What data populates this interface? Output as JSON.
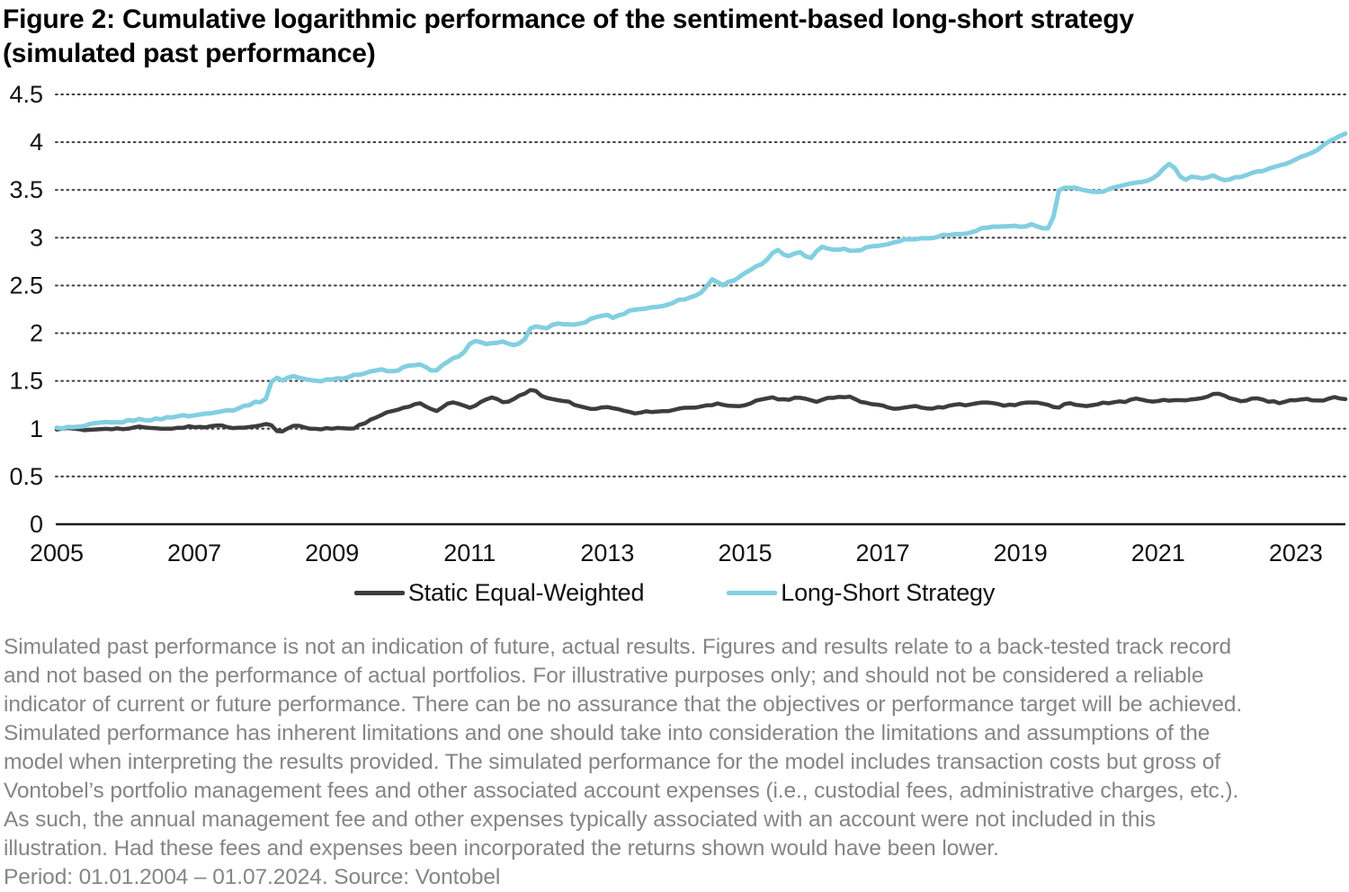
{
  "title": {
    "line1": "Figure 2: Cumulative logarithmic performance of the sentiment-based long-short strategy",
    "line2": "(simulated past performance)"
  },
  "legend": [
    {
      "label": "Static Equal-Weighted",
      "color": "#3d3d3d"
    },
    {
      "label": "Long-Short Strategy",
      "color": "#82cfe0"
    }
  ],
  "footnote": {
    "lines": [
      "Simulated past performance is not an indication of future, actual results. Figures and results relate to a back-tested track record",
      "and not based on the performance of actual portfolios. For illustrative purposes only; and should not be considered a reliable",
      "indicator of current or future performance. There can be no assurance that the objectives or performance target will be achieved.",
      "Simulated performance has inherent limitations and one should take into consideration the limitations and assumptions of the",
      "model when interpreting the results provided. The simulated performance for the model includes transaction costs but gross of",
      "Vontobel’s portfolio management fees and other associated account expenses (i.e., custodial fees, administrative charges, etc.).",
      "As such, the annual management fee and other expenses typically associated with an account were not included in this",
      "illustration. Had these fees and expenses been incorporated the returns shown would have been lower."
    ],
    "period_line": "Period: 01.01.2004 – 01.07.2024. Source: Vontobel"
  },
  "chart_data": {
    "type": "line",
    "title": "Figure 2: Cumulative logarithmic performance of the sentiment-based long-short strategy (simulated past performance)",
    "xlabel": "",
    "ylabel": "",
    "xlim": [
      2005,
      2023.7
    ],
    "ylim": [
      0,
      4.5
    ],
    "y_ticks": [
      0,
      0.5,
      1,
      1.5,
      2,
      2.5,
      3,
      3.5,
      4,
      4.5
    ],
    "x_tick_years": [
      2005,
      2007,
      2009,
      2011,
      2013,
      2015,
      2017,
      2019,
      2021,
      2023
    ],
    "grid": "horizontal-dotted",
    "baseline": "solid-at-0",
    "legend_position": "bottom-center",
    "axis_text_color": "#111111",
    "grid_color": "#3c3c3c",
    "series": [
      {
        "name": "Static Equal-Weighted",
        "color": "#3d3d3d",
        "stroke_width": 4.5,
        "noise": 0.018,
        "x": [
          2005.0,
          2005.4,
          2005.8,
          2006.2,
          2006.6,
          2007.0,
          2007.3,
          2007.6,
          2007.9,
          2008.1,
          2008.25,
          2008.45,
          2008.7,
          2009.0,
          2009.3,
          2009.55,
          2009.8,
          2010.0,
          2010.3,
          2010.5,
          2010.75,
          2011.0,
          2011.3,
          2011.5,
          2011.7,
          2011.9,
          2012.1,
          2012.3,
          2012.5,
          2012.8,
          2013.1,
          2013.4,
          2013.7,
          2014.0,
          2014.3,
          2014.6,
          2014.8,
          2015.0,
          2015.2,
          2015.4,
          2015.6,
          2015.8,
          2016.0,
          2016.2,
          2016.5,
          2016.7,
          2016.9,
          2017.2,
          2017.5,
          2017.8,
          2018.1,
          2018.4,
          2018.7,
          2019.0,
          2019.2,
          2019.45,
          2019.52,
          2019.6,
          2019.8,
          2020.0,
          2020.2,
          2020.5,
          2020.7,
          2020.9,
          2021.1,
          2021.3,
          2021.5,
          2021.7,
          2021.85,
          2022.0,
          2022.2,
          2022.4,
          2022.6,
          2022.8,
          2023.0,
          2023.2,
          2023.4,
          2023.55,
          2023.7
        ],
        "values": [
          1.0,
          0.99,
          1.0,
          1.01,
          1.0,
          1.02,
          1.03,
          1.01,
          1.03,
          1.05,
          0.96,
          1.03,
          1.0,
          1.0,
          1.01,
          1.08,
          1.17,
          1.21,
          1.26,
          1.19,
          1.28,
          1.22,
          1.32,
          1.28,
          1.33,
          1.41,
          1.33,
          1.3,
          1.26,
          1.21,
          1.22,
          1.16,
          1.18,
          1.2,
          1.23,
          1.26,
          1.24,
          1.25,
          1.3,
          1.33,
          1.3,
          1.32,
          1.29,
          1.32,
          1.34,
          1.28,
          1.24,
          1.22,
          1.23,
          1.22,
          1.25,
          1.27,
          1.25,
          1.26,
          1.27,
          1.26,
          1.18,
          1.26,
          1.25,
          1.24,
          1.26,
          1.29,
          1.31,
          1.29,
          1.3,
          1.29,
          1.31,
          1.33,
          1.37,
          1.33,
          1.29,
          1.31,
          1.29,
          1.28,
          1.3,
          1.31,
          1.3,
          1.32,
          1.31
        ]
      },
      {
        "name": "Long-Short Strategy",
        "color": "#82cfe0",
        "stroke_width": 5,
        "noise": 0.02,
        "x": [
          2005.0,
          2005.3,
          2005.6,
          2006.0,
          2006.4,
          2006.8,
          2007.2,
          2007.6,
          2007.95,
          2008.08,
          2008.15,
          2008.25,
          2008.4,
          2008.6,
          2008.85,
          2009.1,
          2009.4,
          2009.7,
          2009.9,
          2010.1,
          2010.3,
          2010.5,
          2010.7,
          2010.9,
          2011.05,
          2011.25,
          2011.45,
          2011.65,
          2011.8,
          2011.9,
          2012.1,
          2012.3,
          2012.5,
          2012.75,
          2012.95,
          2013.1,
          2013.3,
          2013.55,
          2013.8,
          2014.0,
          2014.25,
          2014.4,
          2014.5,
          2014.65,
          2014.8,
          2015.0,
          2015.25,
          2015.45,
          2015.6,
          2015.8,
          2015.95,
          2016.1,
          2016.25,
          2016.45,
          2016.6,
          2016.8,
          2017.0,
          2017.25,
          2017.5,
          2017.75,
          2018.0,
          2018.25,
          2018.5,
          2018.75,
          2019.0,
          2019.2,
          2019.35,
          2019.45,
          2019.55,
          2019.75,
          2019.95,
          2020.15,
          2020.35,
          2020.55,
          2020.75,
          2020.95,
          2021.1,
          2021.2,
          2021.35,
          2021.5,
          2021.65,
          2021.8,
          2021.95,
          2022.1,
          2022.3,
          2022.5,
          2022.7,
          2022.9,
          2023.05,
          2023.2,
          2023.35,
          2023.45,
          2023.55,
          2023.62,
          2023.7
        ],
        "values": [
          1.0,
          1.02,
          1.05,
          1.08,
          1.1,
          1.13,
          1.16,
          1.21,
          1.28,
          1.34,
          1.6,
          1.49,
          1.55,
          1.52,
          1.5,
          1.53,
          1.57,
          1.62,
          1.6,
          1.65,
          1.67,
          1.6,
          1.7,
          1.8,
          1.93,
          1.87,
          1.92,
          1.86,
          1.94,
          2.07,
          2.06,
          2.1,
          2.08,
          2.14,
          2.19,
          2.17,
          2.23,
          2.26,
          2.29,
          2.33,
          2.39,
          2.44,
          2.57,
          2.5,
          2.55,
          2.63,
          2.72,
          2.88,
          2.8,
          2.84,
          2.79,
          2.92,
          2.86,
          2.89,
          2.86,
          2.9,
          2.93,
          2.97,
          2.99,
          3.01,
          3.03,
          3.06,
          3.1,
          3.13,
          3.11,
          3.14,
          3.09,
          3.11,
          3.5,
          3.53,
          3.5,
          3.46,
          3.53,
          3.55,
          3.58,
          3.63,
          3.74,
          3.78,
          3.59,
          3.65,
          3.61,
          3.64,
          3.61,
          3.63,
          3.66,
          3.7,
          3.74,
          3.79,
          3.83,
          3.89,
          3.94,
          3.98,
          4.03,
          4.06,
          4.09
        ]
      }
    ]
  }
}
